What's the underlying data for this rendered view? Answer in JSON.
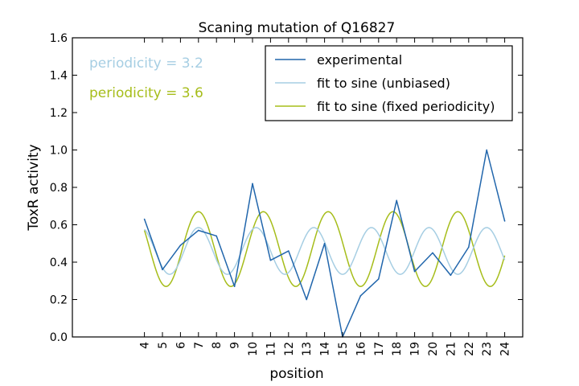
{
  "chart_data": {
    "type": "line",
    "title": "Scaning mutation of Q16827",
    "xlabel": "position",
    "ylabel": "ToxR activity",
    "xlim": [
      0,
      25
    ],
    "ylim": [
      0.0,
      1.6
    ],
    "xticks": [
      4,
      5,
      6,
      7,
      8,
      9,
      10,
      11,
      12,
      13,
      14,
      15,
      16,
      17,
      18,
      19,
      20,
      21,
      22,
      23,
      24
    ],
    "yticks": [
      "0.0",
      "0.2",
      "0.4",
      "0.6",
      "0.8",
      "1.0",
      "1.2",
      "1.4",
      "1.6"
    ],
    "grid": false,
    "legend_position": "top-right",
    "annotations": [
      {
        "text": "periodicity = 3.2",
        "color": "#a6cee3"
      },
      {
        "text": "periodicity = 3.6",
        "color": "#a6bd1a"
      }
    ],
    "series": [
      {
        "name": "experimental",
        "kind": "points",
        "color": "#2166ac",
        "x": [
          4,
          5,
          6,
          7,
          8,
          9,
          10,
          11,
          12,
          13,
          14,
          15,
          16,
          17,
          18,
          19,
          20,
          21,
          22,
          23,
          24
        ],
        "y": [
          0.63,
          0.36,
          0.49,
          0.57,
          0.54,
          0.27,
          0.82,
          0.41,
          0.46,
          0.2,
          0.5,
          0.0,
          0.22,
          0.31,
          0.73,
          0.35,
          0.45,
          0.33,
          0.48,
          1.0,
          0.62
        ]
      },
      {
        "name": "fit to sine (unbiased)",
        "kind": "sine",
        "color": "#a6cee3",
        "x_range": [
          4,
          24
        ],
        "offset": 0.46,
        "amplitude": 0.125,
        "period": 3.2,
        "phase_peak_x": 7.0
      },
      {
        "name": "fit to sine (fixed periodicity)",
        "kind": "sine",
        "color": "#a6bd1a",
        "x_range": [
          4,
          24
        ],
        "offset": 0.47,
        "amplitude": 0.2,
        "period": 3.6,
        "phase_peak_x": 7.0
      }
    ]
  }
}
